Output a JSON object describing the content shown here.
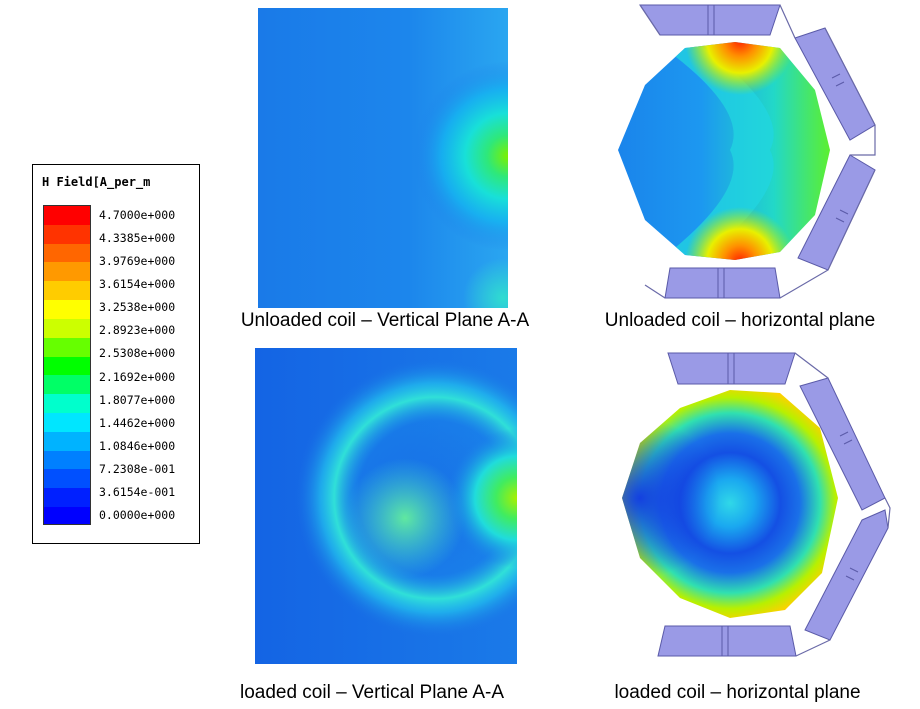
{
  "legend": {
    "title": "H Field[A_per_m",
    "ticks": [
      "4.7000e+000",
      "4.3385e+000",
      "3.9769e+000",
      "3.6154e+000",
      "3.2538e+000",
      "2.8923e+000",
      "2.5308e+000",
      "2.1692e+000",
      "1.8077e+000",
      "1.4462e+000",
      "1.0846e+000",
      "7.2308e-001",
      "3.6154e-001",
      "0.0000e+000"
    ],
    "colors": [
      "#ff0000",
      "#ff3300",
      "#ff6600",
      "#ff9900",
      "#ffcc00",
      "#ffff00",
      "#ccff00",
      "#66ff00",
      "#00ff00",
      "#00ff66",
      "#00ffcc",
      "#00e6ff",
      "#00b3ff",
      "#0080ff",
      "#0050ff",
      "#0020ff",
      "#0000ff"
    ]
  },
  "panels": {
    "unloaded_vertical": {
      "caption": "Unloaded coil – Vertical Plane A-A"
    },
    "unloaded_horizontal": {
      "caption": "Unloaded coil – horizontal plane"
    },
    "loaded_vertical": {
      "caption": "loaded coil – Vertical Plane A-A"
    },
    "loaded_horizontal": {
      "caption": "loaded coil – horizontal plane"
    }
  }
}
